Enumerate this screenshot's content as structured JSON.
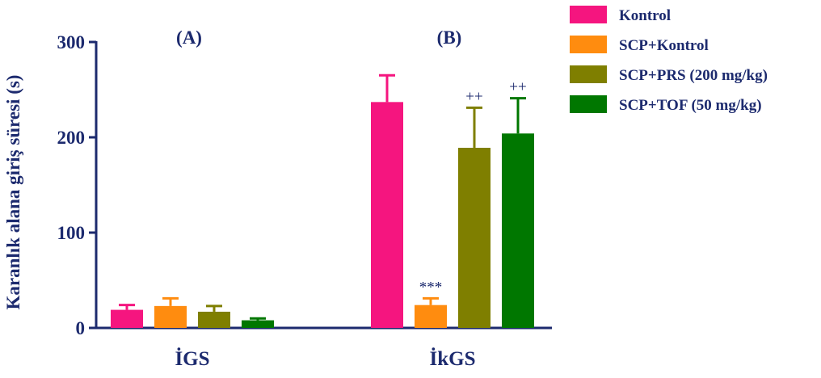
{
  "chart_data": {
    "type": "bar",
    "ylabel": "Karanlık alana giriş süresi (s)",
    "ylim": [
      0,
      300
    ],
    "yticks": [
      0,
      100,
      200,
      300
    ],
    "groups": [
      {
        "panel": "(A)",
        "name": "İGS"
      },
      {
        "panel": "(B)",
        "name": "İkGS"
      }
    ],
    "series": [
      {
        "name": "Kontrol",
        "color": "#f5157f",
        "values": [
          19,
          237
        ],
        "errors": [
          5,
          28
        ],
        "annotations": [
          "",
          ""
        ]
      },
      {
        "name": "SCP+Kontrol",
        "color": "#ff8c0f",
        "values": [
          23,
          24
        ],
        "errors": [
          8,
          7
        ],
        "annotations": [
          "",
          "***"
        ]
      },
      {
        "name": "SCP+PRS (200 mg/kg)",
        "color": "#7f7f00",
        "values": [
          17,
          189
        ],
        "errors": [
          6,
          42
        ],
        "annotations": [
          "",
          "++"
        ]
      },
      {
        "name": "SCP+TOF (50 mg/kg)",
        "color": "#007700",
        "values": [
          8,
          204
        ],
        "errors": [
          2,
          37
        ],
        "annotations": [
          "",
          "++"
        ]
      }
    ],
    "legend_position": "top-right"
  }
}
